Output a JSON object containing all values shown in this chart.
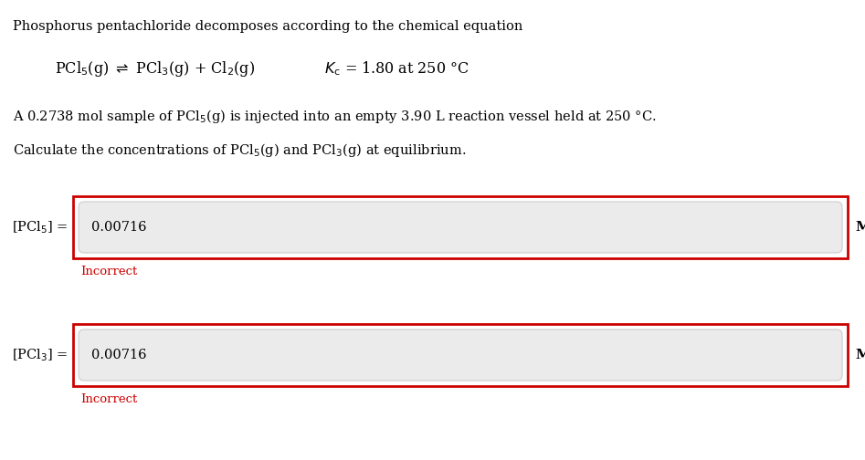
{
  "bg_color": "#ffffff",
  "title_text": "Phosphorus pentachloride decomposes according to the chemical equation",
  "problem_text": "A 0.2738 mol sample of PCl$_5$(g) is injected into an empty 3.90 L reaction vessel held at 250 °C.",
  "question_text": "Calculate the concentrations of PCl$_5$(g) and PCl$_3$(g) at equilibrium.",
  "box1_label": "[PCl$_5$] =",
  "box1_value": "0.00716",
  "box1_unit": "M",
  "box1_incorrect": "Incorrect",
  "box2_label": "[PCl$_3$] =",
  "box2_value": "0.00716",
  "box2_unit": "M",
  "box2_incorrect": "Incorrect",
  "incorrect_color": "#cc0000",
  "box_border_color": "#cc0000",
  "input_bg_color": "#ebebeb",
  "text_color": "#000000",
  "font_size_main": 10.5,
  "font_size_equation": 11.5,
  "font_size_input": 10.5,
  "font_size_incorrect": 9.5,
  "font_size_unit": 11
}
